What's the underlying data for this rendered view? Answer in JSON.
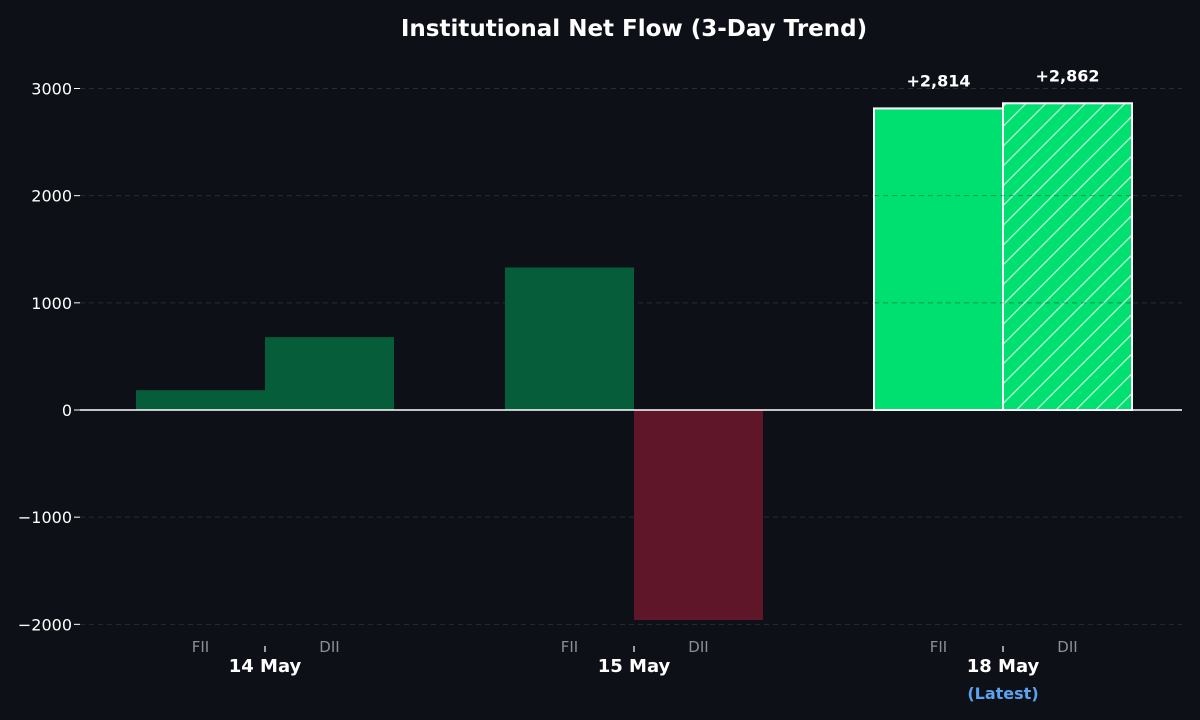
{
  "chart_data": {
    "type": "bar",
    "title": "Institutional Net Flow (3-Day Trend)",
    "categories": [
      "14 May",
      "15 May",
      "18 May"
    ],
    "category_notes": [
      "",
      "",
      "(Latest)"
    ],
    "bar_labels": [
      "FII",
      "DII"
    ],
    "series": [
      {
        "values": [
          185,
          1330,
          2814
        ]
      },
      {
        "values": [
          680,
          -1960,
          2862
        ]
      }
    ],
    "value_labels": [
      {
        "category": "18 May",
        "bar": "FII",
        "text": "+2,814"
      },
      {
        "category": "18 May",
        "bar": "DII",
        "text": "+2,862"
      }
    ],
    "y_ticks": [
      "3000",
      "2000",
      "1000",
      "0",
      "−1000",
      "−2000"
    ],
    "y_tick_values": [
      3000,
      2000,
      1000,
      0,
      -1000,
      -2000
    ],
    "ylim": [
      -2150,
      3300
    ],
    "grid": true,
    "highlight_category": "18 May",
    "colors": {
      "background": "#0d1017",
      "positive": "#055d39",
      "negative": "#5e1628",
      "highlight": "#00e070",
      "highlight_hatch": "#00e070",
      "zero_line": "#ffffff",
      "grid": "#3a3f48",
      "note": "#5aa3f0"
    }
  }
}
